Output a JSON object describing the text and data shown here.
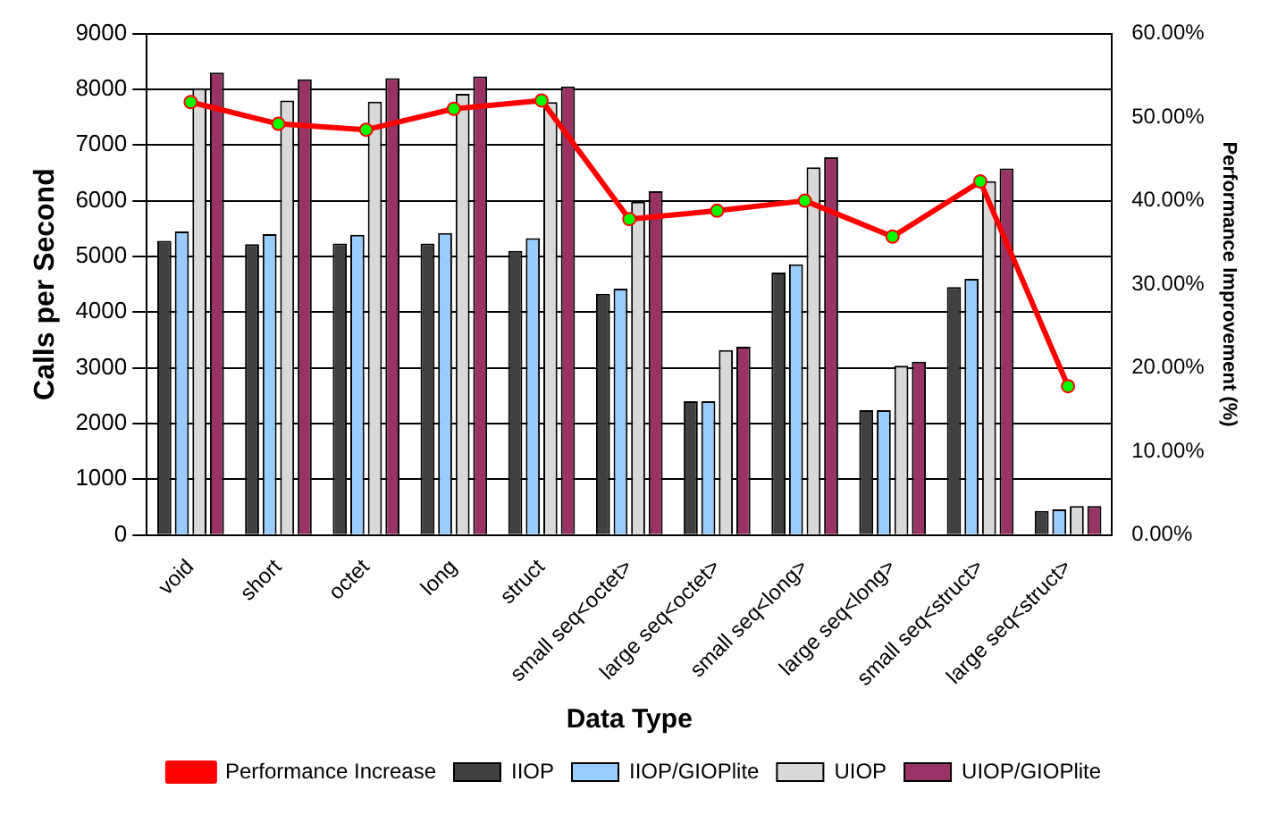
{
  "chart_data": {
    "type": "bar",
    "xlabel": "Data Type",
    "ylabel": "Calls per Second",
    "y2label": "Performance Improvement (%)",
    "categories": [
      "void",
      "short",
      "octet",
      "long",
      "struct",
      "small seq<octet>",
      "large seq<octet>",
      "small seq<long>",
      "large seq<long>",
      "small seq<struct>",
      "large seq<struct>"
    ],
    "series": [
      {
        "name": "IIOP",
        "color": "#404040",
        "values": [
          5280,
          5220,
          5230,
          5230,
          5100,
          4330,
          2400,
          4710,
          2240,
          4450,
          430
        ]
      },
      {
        "name": "IIOP/GIOPlite",
        "color": "#99ccff",
        "values": [
          5450,
          5400,
          5390,
          5420,
          5330,
          4420,
          2400,
          4860,
          2240,
          4600,
          460
        ]
      },
      {
        "name": "UIOP",
        "color": "#d9d9d9",
        "values": [
          8020,
          7800,
          7780,
          7920,
          7770,
          5980,
          3320,
          6600,
          3040,
          6350,
          520
        ]
      },
      {
        "name": "UIOP/GIOPlite",
        "color": "#993366",
        "values": [
          8300,
          8180,
          8200,
          8230,
          8050,
          6170,
          3380,
          6780,
          3110,
          6580,
          520
        ]
      },
      {
        "name": "Performance Increase",
        "type": "line",
        "axis": "y2",
        "color": "#ff0000",
        "values": [
          51.8,
          49.2,
          48.5,
          51.0,
          52.0,
          37.8,
          38.8,
          40.0,
          35.7,
          42.3,
          17.8
        ]
      }
    ],
    "ylim": [
      0,
      9000
    ],
    "yticks": [
      0,
      1000,
      2000,
      3000,
      4000,
      5000,
      6000,
      7000,
      8000,
      9000
    ],
    "y2lim": [
      0,
      60
    ],
    "y2ticks": [
      {
        "value": 0,
        "label": "0.00%"
      },
      {
        "value": 10,
        "label": "10.00%"
      },
      {
        "value": 20,
        "label": "20.00%"
      },
      {
        "value": 30,
        "label": "30.00%"
      },
      {
        "value": 40,
        "label": "40.00%"
      },
      {
        "value": 50,
        "label": "50.00%"
      },
      {
        "value": 60,
        "label": "60.00%"
      }
    ],
    "grid": "y",
    "legend": "bottom",
    "marker": "circle"
  }
}
